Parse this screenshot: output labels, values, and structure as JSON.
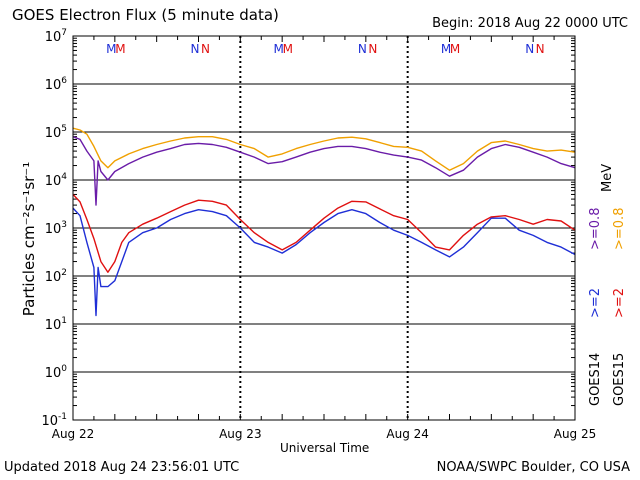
{
  "header": {
    "title": "GOES Electron Flux (5 minute data)",
    "begin": "Begin: 2018 Aug 22 0000 UTC"
  },
  "footer": {
    "updated": "Updated 2018 Aug 24 23:56:01 UTC",
    "credit": "NOAA/SWPC Boulder, CO USA"
  },
  "colors": {
    "goes14_2mev": "#1f2fd6",
    "goes14_08mev": "#6a1ca8",
    "goes15_2mev": "#e01010",
    "goes15_08mev": "#f0a000"
  },
  "chart_data": {
    "type": "line",
    "title": "GOES Electron Flux (5 minute data)",
    "xlabel": "Universal Time",
    "ylabel": "Particles cm⁻²s⁻¹sr⁻¹",
    "yscale": "log",
    "ylim": [
      0.1,
      10000000
    ],
    "xlim": [
      0,
      72
    ],
    "x_units": "hours since 2018 Aug 22 0000 UTC",
    "x_ticks": [
      {
        "x": 0,
        "label": "Aug 22"
      },
      {
        "x": 24,
        "label": "Aug 23"
      },
      {
        "x": 48,
        "label": "Aug 24"
      },
      {
        "x": 72,
        "label": "Aug 25"
      }
    ],
    "y_ticks": [
      {
        "exp": -1,
        "value": 0.1
      },
      {
        "exp": 0,
        "value": 1
      },
      {
        "exp": 1,
        "value": 10
      },
      {
        "exp": 2,
        "value": 100
      },
      {
        "exp": 3,
        "value": 1000
      },
      {
        "exp": 4,
        "value": 10000
      },
      {
        "exp": 5,
        "value": 100000
      },
      {
        "exp": 6,
        "value": 1000000
      },
      {
        "exp": 7,
        "value": 10000000
      }
    ],
    "threshold": 1000,
    "markers": [
      {
        "x": 5.5,
        "label": "M",
        "color": "#1f2fd6"
      },
      {
        "x": 6.8,
        "label": "M",
        "color": "#e01010"
      },
      {
        "x": 17.5,
        "label": "N",
        "color": "#1f2fd6"
      },
      {
        "x": 19.0,
        "label": "N",
        "color": "#e01010"
      },
      {
        "x": 29.5,
        "label": "M",
        "color": "#1f2fd6"
      },
      {
        "x": 30.8,
        "label": "M",
        "color": "#e01010"
      },
      {
        "x": 41.5,
        "label": "N",
        "color": "#1f2fd6"
      },
      {
        "x": 43.0,
        "label": "N",
        "color": "#e01010"
      },
      {
        "x": 53.5,
        "label": "M",
        "color": "#1f2fd6"
      },
      {
        "x": 54.8,
        "label": "M",
        "color": "#e01010"
      },
      {
        "x": 65.5,
        "label": "N",
        "color": "#1f2fd6"
      },
      {
        "x": 67.0,
        "label": "N",
        "color": "#e01010"
      }
    ],
    "series": [
      {
        "key": "goes15_08mev",
        "color": "#f0a000",
        "x": [
          0,
          1,
          2,
          3,
          4,
          5,
          6,
          8,
          10,
          12,
          14,
          16,
          18,
          20,
          22,
          24,
          26,
          28,
          30,
          32,
          34,
          36,
          38,
          40,
          42,
          44,
          46,
          48,
          50,
          52,
          54,
          56,
          58,
          60,
          62,
          64,
          66,
          68,
          70,
          72
        ],
        "y": [
          120000,
          110000,
          90000,
          50000,
          25000,
          18000,
          25000,
          35000,
          45000,
          55000,
          65000,
          75000,
          80000,
          80000,
          70000,
          55000,
          45000,
          30000,
          35000,
          45000,
          55000,
          65000,
          75000,
          78000,
          72000,
          60000,
          50000,
          48000,
          40000,
          25000,
          16000,
          22000,
          40000,
          60000,
          65000,
          55000,
          45000,
          40000,
          42000,
          38000
        ]
      },
      {
        "key": "goes14_08mev",
        "color": "#6a1ca8",
        "x": [
          0,
          1,
          2,
          3,
          3.3,
          3.6,
          4,
          5,
          6,
          8,
          10,
          12,
          14,
          16,
          18,
          20,
          22,
          24,
          26,
          28,
          30,
          32,
          34,
          36,
          38,
          40,
          42,
          44,
          46,
          48,
          50,
          52,
          54,
          56,
          58,
          60,
          62,
          64,
          66,
          68,
          70,
          72
        ],
        "y": [
          80000,
          70000,
          40000,
          25000,
          3000,
          25000,
          15000,
          10000,
          15000,
          22000,
          30000,
          38000,
          45000,
          55000,
          58000,
          55000,
          48000,
          38000,
          30000,
          22000,
          24000,
          30000,
          38000,
          45000,
          50000,
          50000,
          45000,
          38000,
          33000,
          30000,
          26000,
          18000,
          12000,
          16000,
          30000,
          45000,
          55000,
          48000,
          38000,
          30000,
          22000,
          18000
        ]
      },
      {
        "key": "goes15_2mev",
        "color": "#e01010",
        "x": [
          0,
          1,
          2,
          3,
          4,
          5,
          6,
          7,
          8,
          10,
          12,
          14,
          16,
          18,
          20,
          22,
          24,
          26,
          28,
          30,
          32,
          34,
          36,
          38,
          40,
          42,
          44,
          46,
          48,
          50,
          52,
          54,
          56,
          58,
          60,
          62,
          64,
          66,
          68,
          70,
          72
        ],
        "y": [
          5000,
          3500,
          1500,
          600,
          200,
          120,
          200,
          500,
          800,
          1200,
          1600,
          2200,
          3000,
          3800,
          3600,
          3000,
          1500,
          800,
          500,
          350,
          500,
          900,
          1600,
          2600,
          3600,
          3500,
          2500,
          1800,
          1500,
          800,
          400,
          350,
          700,
          1200,
          1700,
          1800,
          1500,
          1200,
          1500,
          1400,
          900
        ]
      },
      {
        "key": "goes14_2mev",
        "color": "#1f2fd6",
        "x": [
          0,
          1,
          2,
          3,
          3.3,
          3.6,
          4,
          5,
          6,
          7,
          8,
          10,
          12,
          14,
          16,
          18,
          20,
          22,
          24,
          26,
          28,
          30,
          32,
          34,
          36,
          38,
          40,
          42,
          44,
          46,
          48,
          50,
          52,
          54,
          56,
          58,
          60,
          62,
          64,
          66,
          68,
          70,
          72
        ],
        "y": [
          2600,
          1800,
          500,
          150,
          15,
          150,
          60,
          60,
          80,
          200,
          500,
          800,
          1000,
          1500,
          2000,
          2400,
          2200,
          1800,
          1000,
          500,
          400,
          300,
          450,
          800,
          1300,
          2000,
          2400,
          2000,
          1300,
          900,
          700,
          500,
          350,
          250,
          400,
          800,
          1600,
          1600,
          900,
          700,
          500,
          400,
          280
        ]
      }
    ],
    "legend": [
      {
        "text": "GOES14",
        "color": "#000000"
      },
      {
        "text": ">=2",
        "color": "#1f2fd6"
      },
      {
        "text": ">=0.8",
        "color": "#6a1ca8"
      },
      {
        "text": "GOES15",
        "color": "#000000"
      },
      {
        "text": ">=2",
        "color": "#e01010"
      },
      {
        "text": ">=0.8",
        "color": "#f0a000"
      },
      {
        "text": "MeV",
        "color": "#000000"
      }
    ]
  }
}
